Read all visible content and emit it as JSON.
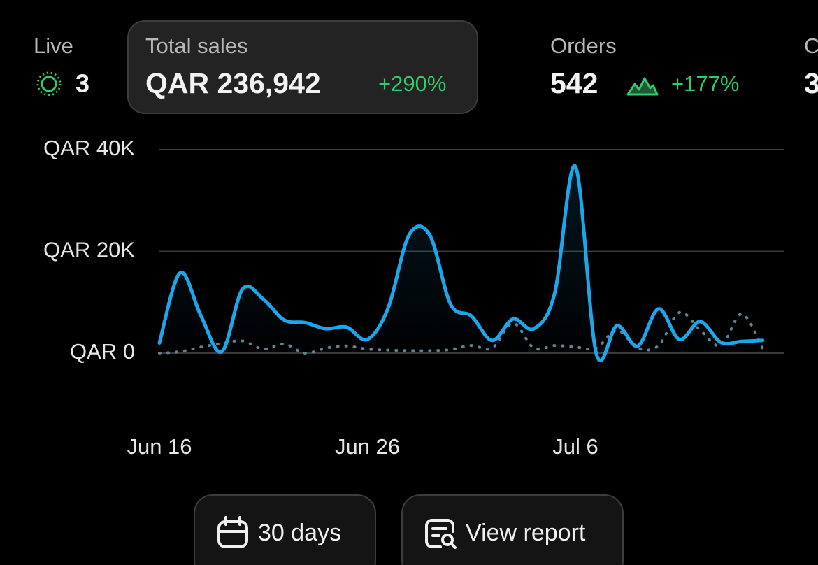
{
  "stats": [
    {
      "label": "Live",
      "value": "3"
    },
    {
      "label": "Total sales",
      "value": "QAR 236,942",
      "change": "+290%"
    },
    {
      "label": "Orders",
      "value": "542",
      "change": "+177%"
    },
    {
      "label": "C",
      "value": "3"
    }
  ],
  "chart_data": {
    "type": "line",
    "categories": [
      "Jun 16",
      null,
      null,
      null,
      null,
      null,
      null,
      null,
      null,
      null,
      "Jun 26",
      null,
      null,
      null,
      null,
      null,
      null,
      null,
      null,
      null,
      "Jul 6",
      null,
      null,
      null,
      null,
      null,
      null,
      null,
      null,
      null
    ],
    "series": [
      {
        "color": "#1aa7ec",
        "values": [
          2000,
          15800,
          7300,
          300,
          12600,
          10600,
          6500,
          6000,
          4800,
          5100,
          2700,
          8900,
          23200,
          23200,
          9600,
          7300,
          2500,
          6700,
          4800,
          11700,
          36700,
          0,
          5400,
          1400,
          8700,
          2700,
          6200,
          2100,
          2300,
          2500
        ]
      },
      {
        "color": "#5e8394",
        "values": [
          0,
          300,
          1200,
          1900,
          2400,
          800,
          1800,
          0,
          1000,
          1400,
          800,
          600,
          500,
          500,
          700,
          1500,
          1000,
          5900,
          1000,
          1500,
          1200,
          1000,
          4500,
          1000,
          1500,
          8000,
          4500,
          1500,
          7700,
          1000
        ]
      }
    ],
    "ylim": [
      0,
      40000
    ],
    "yticks": [
      {
        "value": 0,
        "label": "QAR 0"
      },
      {
        "value": 20000,
        "label": "QAR 20K"
      },
      {
        "value": 40000,
        "label": "QAR 40K"
      }
    ],
    "grid": true
  },
  "buttons": [
    "30 days",
    "View report"
  ]
}
